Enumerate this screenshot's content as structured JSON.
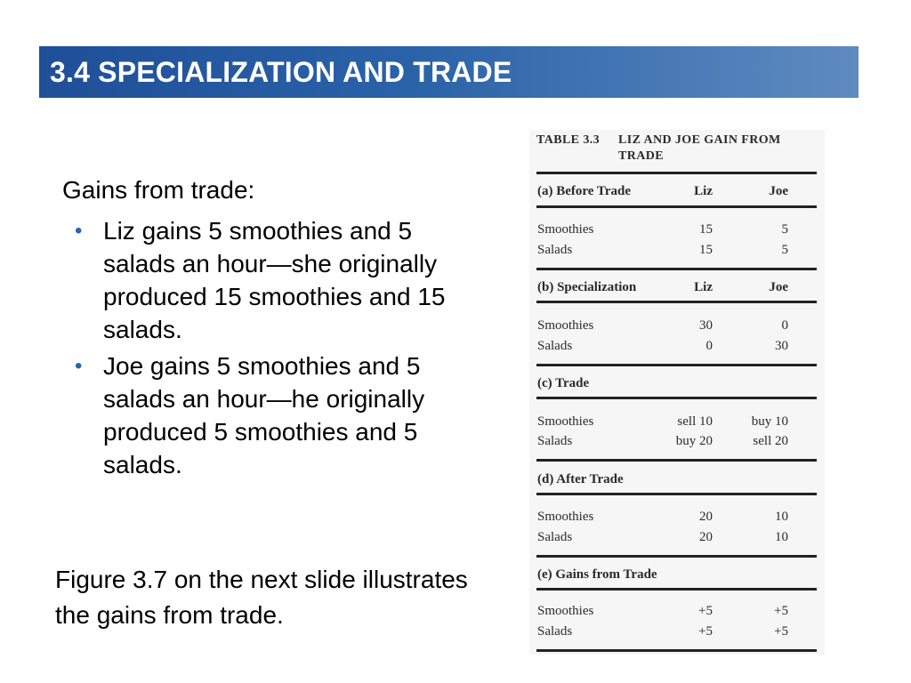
{
  "slide": {
    "title": "3.4  SPECIALIZATION AND TRADE",
    "intro": "Gains from trade:",
    "bullets": [
      "Liz gains 5 smoothies and 5 salads an hour—she originally produced 15 smoothies and 15 salads.",
      "Joe gains 5 smoothies and 5 salads an hour—he originally produced 5 smoothies and 5 salads."
    ],
    "bullet_marker": "•",
    "closing": "Figure 3.7 on the next slide illustrates the gains from trade.",
    "colors": {
      "title_bar": "#2a62a8",
      "title_text": "#ffffff",
      "bullet": "#2b63aa"
    }
  },
  "table": {
    "label": "TABLE 3.3",
    "title": "LIZ AND JOE GAIN FROM TRADE",
    "sections": [
      {
        "heading": "(a) Before Trade",
        "col_liz": "Liz",
        "col_joe": "Joe",
        "rows": [
          {
            "label": "Smoothies",
            "liz": "15",
            "joe": "5"
          },
          {
            "label": "Salads",
            "liz": "15",
            "joe": "5"
          }
        ]
      },
      {
        "heading": "(b) Specialization",
        "col_liz": "Liz",
        "col_joe": "Joe",
        "rows": [
          {
            "label": "Smoothies",
            "liz": "30",
            "joe": "0"
          },
          {
            "label": "Salads",
            "liz": "0",
            "joe": "30"
          }
        ]
      },
      {
        "heading": "(c) Trade",
        "rows": [
          {
            "label": "Smoothies",
            "liz": "sell 10",
            "joe": "buy 10"
          },
          {
            "label": "Salads",
            "liz": "buy 20",
            "joe": "sell 20"
          }
        ]
      },
      {
        "heading": "(d) After Trade",
        "rows": [
          {
            "label": "Smoothies",
            "liz": "20",
            "joe": "10"
          },
          {
            "label": "Salads",
            "liz": "20",
            "joe": "10"
          }
        ]
      },
      {
        "heading": "(e) Gains from Trade",
        "rows": [
          {
            "label": "Smoothies",
            "liz": "+5",
            "joe": "+5"
          },
          {
            "label": "Salads",
            "liz": "+5",
            "joe": "+5"
          }
        ]
      }
    ]
  }
}
